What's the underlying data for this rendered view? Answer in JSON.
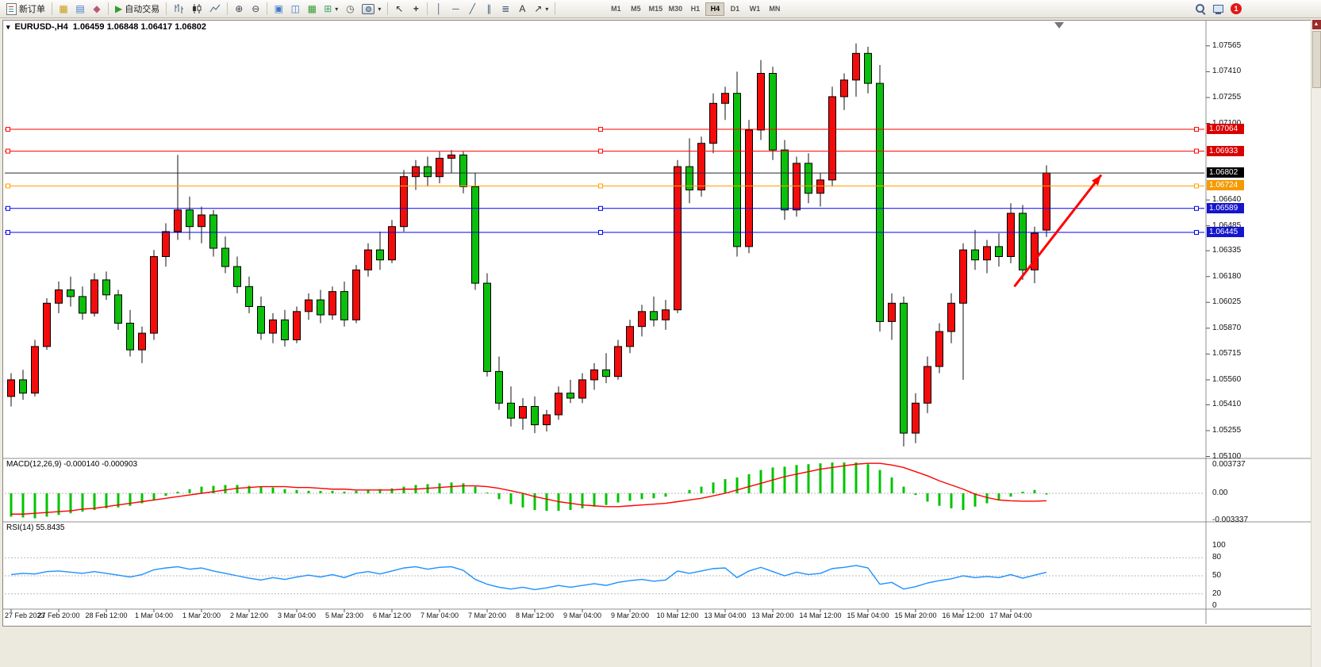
{
  "toolbar": {
    "new_order_label": "新订单",
    "autotrading_label": "自动交易",
    "timeframes": [
      "M1",
      "M5",
      "M15",
      "M30",
      "H1",
      "H4",
      "D1",
      "W1",
      "MN"
    ],
    "active_timeframe": "H4",
    "notification_count": "1"
  },
  "icons": {
    "window_menu": "▾",
    "market_watch": "▦",
    "data_window": "▤",
    "navigator": "◆",
    "autotrading": "▶",
    "zoom_in": "⊕",
    "zoom_out": "⊖",
    "cascade": "▣",
    "tile": "◫",
    "indicators": "▦",
    "new_chart": "⊞",
    "clock": "◷",
    "cursor": "↖",
    "crosshair": "+",
    "vline": "│",
    "hline": "─",
    "trendline": "╱",
    "channel": "∥",
    "fibonacci": "≣",
    "text_tool": "A",
    "arrow_tool": "↗",
    "dropdown": "▾",
    "scroll_up": "▲"
  },
  "chart": {
    "symbol_period": "EURUSD-,H4",
    "ohlc_text": "1.06459 1.06848 1.06417 1.06802"
  },
  "chart_data": {
    "type": "candlestick",
    "symbol": "EURUSD-",
    "period": "H4",
    "last": {
      "open": 1.06459,
      "high": 1.06848,
      "low": 1.06417,
      "close": 1.06802
    },
    "colors": {
      "bull": "#f20c0c",
      "bear": "#0cbf0c",
      "wick": "#111111",
      "macd_hist": "#00c400",
      "macd_signal": "#ff0000",
      "rsi": "#1e90ff"
    },
    "y_axis_ticks": [
      "1.07565",
      "1.07410",
      "1.07255",
      "1.07100",
      "1.06640",
      "1.06485",
      "1.06335",
      "1.06180",
      "1.06025",
      "1.05870",
      "1.05715",
      "1.05560",
      "1.05410",
      "1.05255",
      "1.05100"
    ],
    "price_tags": [
      {
        "text": "1.07064",
        "price": 1.07064,
        "color": "#d90000"
      },
      {
        "text": "1.06933",
        "price": 1.06933,
        "color": "#d90000"
      },
      {
        "text": "1.06802",
        "price": 1.06802,
        "color": "#000000"
      },
      {
        "text": "1.06724",
        "price": 1.06724,
        "color": "#f59a00"
      },
      {
        "text": "1.06589",
        "price": 1.06589,
        "color": "#1515cd"
      },
      {
        "text": "1.06445",
        "price": 1.06445,
        "color": "#1515cd"
      }
    ],
    "horizontal_lines": [
      {
        "price": 1.07064,
        "color": "#ff0000",
        "handles": true
      },
      {
        "price": 1.06933,
        "color": "#ff0000",
        "handles": true
      },
      {
        "price": 1.06802,
        "color": "#2b2b2b",
        "handles": false
      },
      {
        "price": 1.06724,
        "color": "#ffa000",
        "handles": true
      },
      {
        "price": 1.06589,
        "color": "#0000ee",
        "handles": true
      },
      {
        "price": 1.06445,
        "color": "#0000ee",
        "handles": true
      }
    ],
    "x_labels": [
      "27 Feb 2023",
      "27 Feb 20:00",
      "28 Feb 12:00",
      "1 Mar 04:00",
      "1 Mar 20:00",
      "2 Mar 12:00",
      "3 Mar 04:00",
      "5 Mar 23:00",
      "6 Mar 12:00",
      "7 Mar 04:00",
      "7 Mar 20:00",
      "8 Mar 12:00",
      "9 Mar 04:00",
      "9 Mar 20:00",
      "10 Mar 12:00",
      "13 Mar 04:00",
      "13 Mar 20:00",
      "14 Mar 12:00",
      "15 Mar 04:00",
      "15 Mar 20:00",
      "16 Mar 12:00",
      "17 Mar 04:00"
    ],
    "x_label_step_bars": 4,
    "candles": [
      [
        1.0546,
        1.056,
        1.054,
        1.0556
      ],
      [
        1.0556,
        1.0562,
        1.0544,
        1.0548
      ],
      [
        1.0548,
        1.058,
        1.0546,
        1.0576
      ],
      [
        1.0576,
        1.0605,
        1.0574,
        1.0602
      ],
      [
        1.0602,
        1.0615,
        1.0596,
        1.061
      ],
      [
        1.061,
        1.0618,
        1.06,
        1.0606
      ],
      [
        1.0606,
        1.0612,
        1.0592,
        1.0596
      ],
      [
        1.0596,
        1.062,
        1.0594,
        1.0616
      ],
      [
        1.0616,
        1.0621,
        1.0604,
        1.0607
      ],
      [
        1.0607,
        1.061,
        1.0586,
        1.059
      ],
      [
        1.059,
        1.0598,
        1.057,
        1.0574
      ],
      [
        1.0574,
        1.0588,
        1.0566,
        1.0584
      ],
      [
        1.0584,
        1.0634,
        1.058,
        1.063
      ],
      [
        1.063,
        1.065,
        1.0624,
        1.0645
      ],
      [
        1.0645,
        1.0691,
        1.064,
        1.0658
      ],
      [
        1.0658,
        1.0666,
        1.064,
        1.0648
      ],
      [
        1.0648,
        1.066,
        1.0638,
        1.0655
      ],
      [
        1.0655,
        1.0658,
        1.063,
        1.0635
      ],
      [
        1.0635,
        1.0642,
        1.062,
        1.0624
      ],
      [
        1.0624,
        1.063,
        1.0608,
        1.0612
      ],
      [
        1.0612,
        1.0618,
        1.0596,
        1.06
      ],
      [
        1.06,
        1.0606,
        1.058,
        1.0584
      ],
      [
        1.0584,
        1.0596,
        1.0578,
        1.0592
      ],
      [
        1.0592,
        1.0598,
        1.0576,
        1.058
      ],
      [
        1.058,
        1.06,
        1.0578,
        1.0597
      ],
      [
        1.0597,
        1.0608,
        1.0592,
        1.0604
      ],
      [
        1.0604,
        1.061,
        1.059,
        1.0595
      ],
      [
        1.0595,
        1.0612,
        1.0592,
        1.0609
      ],
      [
        1.0609,
        1.0615,
        1.0588,
        1.0592
      ],
      [
        1.0592,
        1.0625,
        1.059,
        1.0622
      ],
      [
        1.0622,
        1.0638,
        1.0618,
        1.0634
      ],
      [
        1.0634,
        1.0645,
        1.0622,
        1.0628
      ],
      [
        1.0628,
        1.0652,
        1.0626,
        1.0648
      ],
      [
        1.0648,
        1.0682,
        1.0645,
        1.0678
      ],
      [
        1.0678,
        1.0688,
        1.067,
        1.0684
      ],
      [
        1.0684,
        1.069,
        1.0672,
        1.0678
      ],
      [
        1.0678,
        1.0693,
        1.0674,
        1.0689
      ],
      [
        1.0689,
        1.0694,
        1.068,
        1.0691
      ],
      [
        1.0691,
        1.0693,
        1.0668,
        1.0672
      ],
      [
        1.0672,
        1.068,
        1.061,
        1.0614
      ],
      [
        1.0614,
        1.062,
        1.0558,
        1.0561
      ],
      [
        1.0561,
        1.057,
        1.0538,
        1.0542
      ],
      [
        1.0542,
        1.0552,
        1.0528,
        1.0533
      ],
      [
        1.0533,
        1.0545,
        1.0526,
        1.054
      ],
      [
        1.054,
        1.0546,
        1.0524,
        1.0529
      ],
      [
        1.0529,
        1.0538,
        1.0525,
        1.0535
      ],
      [
        1.0535,
        1.0552,
        1.0532,
        1.0548
      ],
      [
        1.0548,
        1.0556,
        1.0542,
        1.0545
      ],
      [
        1.0545,
        1.056,
        1.0542,
        1.0556
      ],
      [
        1.0556,
        1.0566,
        1.055,
        1.0562
      ],
      [
        1.0562,
        1.0572,
        1.0554,
        1.0558
      ],
      [
        1.0558,
        1.058,
        1.0556,
        1.0576
      ],
      [
        1.0576,
        1.0592,
        1.0572,
        1.0588
      ],
      [
        1.0588,
        1.0601,
        1.0582,
        1.0597
      ],
      [
        1.0597,
        1.0606,
        1.0588,
        1.0592
      ],
      [
        1.0592,
        1.0604,
        1.0586,
        1.0598
      ],
      [
        1.0598,
        1.0688,
        1.0596,
        1.0684
      ],
      [
        1.0684,
        1.0701,
        1.0662,
        1.067
      ],
      [
        1.067,
        1.0702,
        1.0666,
        1.0698
      ],
      [
        1.0698,
        1.0728,
        1.0692,
        1.0722
      ],
      [
        1.0722,
        1.0732,
        1.0712,
        1.0728
      ],
      [
        1.0728,
        1.0741,
        1.063,
        1.0636
      ],
      [
        1.0636,
        1.0712,
        1.0632,
        1.0706
      ],
      [
        1.0706,
        1.0748,
        1.07,
        1.074
      ],
      [
        1.074,
        1.0744,
        1.0688,
        1.0694
      ],
      [
        1.0694,
        1.07,
        1.0652,
        1.0658
      ],
      [
        1.0658,
        1.069,
        1.0654,
        1.0686
      ],
      [
        1.0686,
        1.0692,
        1.0662,
        1.0668
      ],
      [
        1.0668,
        1.068,
        1.066,
        1.0676
      ],
      [
        1.0676,
        1.0732,
        1.0672,
        1.0726
      ],
      [
        1.0726,
        1.074,
        1.0718,
        1.0736
      ],
      [
        1.0736,
        1.0758,
        1.0726,
        1.0752
      ],
      [
        1.0752,
        1.0756,
        1.0728,
        1.0734
      ],
      [
        1.0734,
        1.0745,
        1.0585,
        1.0591
      ],
      [
        1.0591,
        1.0608,
        1.058,
        1.0602
      ],
      [
        1.0602,
        1.0606,
        1.0516,
        1.0524
      ],
      [
        1.0524,
        1.0548,
        1.0518,
        1.0542
      ],
      [
        1.0542,
        1.057,
        1.0536,
        1.0564
      ],
      [
        1.0564,
        1.059,
        1.056,
        1.0585
      ],
      [
        1.0585,
        1.0608,
        1.0578,
        1.0602
      ],
      [
        1.0602,
        1.0638,
        1.0556,
        1.0634
      ],
      [
        1.0634,
        1.0646,
        1.0622,
        1.0628
      ],
      [
        1.0628,
        1.064,
        1.062,
        1.0636
      ],
      [
        1.0636,
        1.0644,
        1.0624,
        1.063
      ],
      [
        1.063,
        1.0662,
        1.0626,
        1.0656
      ],
      [
        1.0656,
        1.0661,
        1.0616,
        1.0622
      ],
      [
        1.0622,
        1.0648,
        1.0614,
        1.0644
      ],
      [
        1.06459,
        1.06848,
        1.06417,
        1.06802
      ]
    ],
    "trend_arrow": {
      "from_bar": 84.3,
      "from_price": 1.0612,
      "to_bar": 91.6,
      "to_price": 1.0679,
      "color": "#ff0000"
    },
    "macd": {
      "label": "MACD(12,26,9) -0.000140 -0.000903",
      "axis": [
        "0.003737",
        "0.00",
        "-0.003337"
      ],
      "hist": [
        -0.0028,
        -0.0029,
        -0.003,
        -0.0028,
        -0.0026,
        -0.0024,
        -0.0022,
        -0.002,
        -0.0018,
        -0.0017,
        -0.0015,
        -0.0012,
        -0.0008,
        -0.0003,
        0.0002,
        0.0005,
        0.0008,
        0.0009,
        0.001,
        0.001,
        0.0009,
        0.0008,
        0.0007,
        0.0005,
        0.0004,
        0.0003,
        0.0003,
        0.0003,
        0.0002,
        0.0003,
        0.0004,
        0.0005,
        0.0006,
        0.0008,
        0.001,
        0.0011,
        0.0012,
        0.0013,
        0.0012,
        0.0008,
        0.0001,
        -0.0007,
        -0.0013,
        -0.0017,
        -0.002,
        -0.0021,
        -0.0021,
        -0.002,
        -0.0018,
        -0.0016,
        -0.0014,
        -0.0011,
        -0.0009,
        -0.0007,
        -0.0006,
        -0.0004,
        0.0,
        0.0004,
        0.0008,
        0.0013,
        0.0017,
        0.0019,
        0.0023,
        0.0028,
        0.0031,
        0.0032,
        0.0034,
        0.0035,
        0.0036,
        0.0037,
        0.0037,
        0.0037,
        0.0035,
        0.0028,
        0.0019,
        0.0008,
        -0.0002,
        -0.001,
        -0.0015,
        -0.0018,
        -0.002,
        -0.0016,
        -0.0012,
        -0.0008,
        -0.0004,
        0.0002,
        0.0004,
        -0.00014
      ],
      "signal": [
        -0.0025,
        -0.0025,
        -0.0024,
        -0.0023,
        -0.0022,
        -0.0021,
        -0.0019,
        -0.0018,
        -0.0016,
        -0.0014,
        -0.0012,
        -0.001,
        -0.0008,
        -0.0006,
        -0.0004,
        -0.0002,
        0.0,
        0.0002,
        0.0004,
        0.0006,
        0.0007,
        0.0008,
        0.0008,
        0.0008,
        0.0007,
        0.0007,
        0.0006,
        0.0005,
        0.0005,
        0.0004,
        0.0004,
        0.0004,
        0.0004,
        0.0005,
        0.0005,
        0.0006,
        0.0007,
        0.0008,
        0.0009,
        0.0009,
        0.0008,
        0.0006,
        0.0003,
        0.0,
        -0.0004,
        -0.0007,
        -0.001,
        -0.0012,
        -0.0014,
        -0.0015,
        -0.0016,
        -0.0016,
        -0.0015,
        -0.0014,
        -0.0013,
        -0.0012,
        -0.001,
        -0.0008,
        -0.0006,
        -0.0003,
        0.0,
        0.0004,
        0.0008,
        0.0012,
        0.0016,
        0.002,
        0.0023,
        0.0026,
        0.0029,
        0.0031,
        0.0033,
        0.0035,
        0.0036,
        0.0036,
        0.0034,
        0.0031,
        0.0026,
        0.0021,
        0.0015,
        0.001,
        0.0005,
        -0.0001,
        -0.0005,
        -0.0008,
        -0.0009,
        -0.00095,
        -0.00095,
        -0.000903
      ]
    },
    "rsi": {
      "label": "RSI(14) 55.8435",
      "axis": [
        "100",
        "80",
        "50",
        "20",
        "0"
      ],
      "levels": [
        80,
        50,
        20
      ],
      "values": [
        52,
        54,
        53,
        57,
        58,
        56,
        54,
        57,
        54,
        51,
        48,
        52,
        60,
        63,
        65,
        61,
        63,
        58,
        54,
        50,
        46,
        43,
        47,
        44,
        48,
        51,
        48,
        52,
        47,
        54,
        57,
        53,
        58,
        63,
        65,
        61,
        64,
        65,
        59,
        44,
        36,
        31,
        28,
        31,
        27,
        30,
        34,
        31,
        34,
        37,
        34,
        39,
        42,
        44,
        41,
        43,
        58,
        54,
        58,
        62,
        63,
        47,
        58,
        64,
        57,
        50,
        56,
        52,
        54,
        62,
        64,
        67,
        63,
        36,
        39,
        28,
        32,
        38,
        42,
        45,
        50,
        47,
        49,
        47,
        52,
        46,
        51,
        55.8435
      ]
    }
  }
}
